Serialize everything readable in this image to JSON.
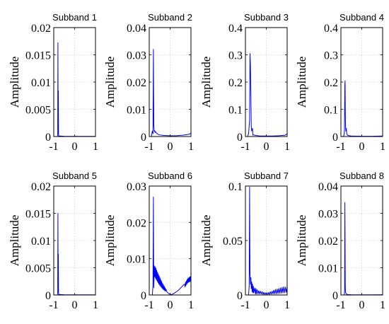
{
  "chart_data": [
    {
      "type": "line",
      "title": "Subband 1",
      "xlabel": "",
      "ylabel": "Amplitude",
      "xlim": [
        -1,
        1
      ],
      "ylim": [
        0,
        0.02
      ],
      "xticks": [
        "-1",
        "0",
        "1"
      ],
      "yticks": [
        "0",
        "0.005",
        "0.01",
        "0.015",
        "0.02"
      ],
      "grid": true,
      "series": [
        {
          "color": "#0000ff",
          "x": [
            -0.82,
            -0.81,
            -0.8,
            -0.79,
            -0.78,
            -0.77,
            -0.76,
            -0.75,
            -0.7,
            -0.5,
            0,
            0.5,
            1
          ],
          "y": [
            0,
            0.0001,
            0.0172,
            0.0005,
            0.0084,
            0.0003,
            0.0001,
            0.0001,
            0.0001,
            5e-05,
            3e-05,
            3e-05,
            4e-05
          ]
        }
      ]
    },
    {
      "type": "line",
      "title": "Subband 2",
      "xlabel": "",
      "ylabel": "Amplitude",
      "xlim": [
        -1,
        1
      ],
      "ylim": [
        0,
        0.04
      ],
      "xticks": [
        "-1",
        "0",
        "1"
      ],
      "yticks": [
        "0",
        "0.01",
        "0.02",
        "0.03",
        "0.04"
      ],
      "grid": true,
      "series": [
        {
          "color": "#0000ff",
          "x": [
            -0.9,
            -0.85,
            -0.82,
            -0.8,
            -0.79,
            -0.78,
            -0.77,
            -0.76,
            -0.74,
            -0.72,
            -0.7,
            -0.65,
            -0.6,
            -0.5,
            -0.3,
            0,
            0.3,
            0.6,
            0.9,
            1
          ],
          "y": [
            0,
            0.002,
            0.001,
            0.032,
            0.017,
            0.004,
            0.003,
            0.002,
            0.0022,
            0.0015,
            0.0018,
            0.0012,
            0.0009,
            0.0006,
            0.0004,
            0.0003,
            0.0003,
            0.0005,
            0.0008,
            0.0012
          ]
        }
      ]
    },
    {
      "type": "line",
      "title": "Subband 3",
      "xlabel": "",
      "ylabel": "Amplitude",
      "xlim": [
        -1,
        1
      ],
      "ylim": [
        0,
        0.4
      ],
      "xticks": [
        "-1",
        "0",
        "1"
      ],
      "yticks": [
        "0",
        "0.1",
        "0.2",
        "0.3",
        "0.4"
      ],
      "grid": true,
      "series": [
        {
          "color": "#0000ff",
          "x": [
            -0.9,
            -0.85,
            -0.8,
            -0.78,
            -0.76,
            -0.74,
            -0.72,
            -0.7,
            -0.66,
            -0.64,
            -0.6,
            -0.5,
            -0.3,
            0,
            0.3,
            0.6,
            0.9,
            1
          ],
          "y": [
            0,
            0.01,
            0.06,
            0.305,
            0.26,
            0.16,
            0.04,
            0.02,
            0.03,
            0.005,
            0.006,
            0.004,
            0.002,
            0.002,
            0.002,
            0.003,
            0.005,
            0.01
          ]
        }
      ]
    },
    {
      "type": "line",
      "title": "Subband 4",
      "xlabel": "",
      "ylabel": "Amplitude",
      "xlim": [
        -1,
        1
      ],
      "ylim": [
        0,
        0.4
      ],
      "xticks": [
        "-1",
        "0",
        "1"
      ],
      "yticks": [
        "0",
        "0.1",
        "0.2",
        "0.3",
        "0.4"
      ],
      "grid": true,
      "series": [
        {
          "color": "#0000ff",
          "x": [
            -0.9,
            -0.85,
            -0.83,
            -0.81,
            -0.8,
            -0.79,
            -0.78,
            -0.76,
            -0.74,
            -0.72,
            -0.68,
            -0.6,
            -0.5,
            0,
            0.5,
            1
          ],
          "y": [
            0,
            0.005,
            0.02,
            0.19,
            0.205,
            0.1,
            0.04,
            0.02,
            0.03,
            0.01,
            0.005,
            0.003,
            0.002,
            0.001,
            0.001,
            0.002
          ]
        }
      ]
    },
    {
      "type": "line",
      "title": "Subband 5",
      "xlabel": "",
      "ylabel": "Amplitude",
      "xlim": [
        -1,
        1
      ],
      "ylim": [
        0,
        0.02
      ],
      "xticks": [
        "-1",
        "0",
        "1"
      ],
      "yticks": [
        "0",
        "0.005",
        "0.01",
        "0.015",
        "0.02"
      ],
      "grid": true,
      "series": [
        {
          "color": "#0000ff",
          "x": [
            -0.82,
            -0.81,
            -0.8,
            -0.79,
            -0.78,
            -0.77,
            -0.76,
            -0.75,
            -0.7,
            -0.5,
            0,
            0.5,
            1
          ],
          "y": [
            0,
            0.0001,
            0.015,
            0.0005,
            0.0075,
            0.0003,
            0.0001,
            0.0001,
            0.0001,
            5e-05,
            3e-05,
            3e-05,
            4e-05
          ]
        }
      ]
    },
    {
      "type": "line",
      "title": "Subband 6",
      "xlabel": "",
      "ylabel": "Amplitude",
      "xlim": [
        -1,
        1
      ],
      "ylim": [
        0,
        0.03
      ],
      "xticks": [
        "-1",
        "0",
        "1"
      ],
      "yticks": [
        "0",
        "0.01",
        "0.02",
        "0.03"
      ],
      "grid": true,
      "series": [
        {
          "color": "#0000ff",
          "x": [
            -0.85,
            -0.82,
            -0.8,
            -0.79,
            -0.78,
            -0.76,
            -0.74,
            -0.72,
            -0.7,
            -0.68,
            -0.66,
            -0.64,
            -0.62,
            -0.6,
            -0.58,
            -0.56,
            -0.54,
            -0.52,
            -0.5,
            -0.48,
            -0.46,
            -0.44,
            -0.42,
            -0.4,
            -0.38,
            -0.36,
            -0.34,
            -0.32,
            -0.3,
            -0.28,
            -0.26,
            -0.24,
            -0.22,
            -0.2,
            -0.15,
            -0.1,
            -0.05,
            0,
            0.05,
            0.1,
            0.15,
            0.2,
            0.25,
            0.3,
            0.35,
            0.4,
            0.45,
            0.5,
            0.55,
            0.6,
            0.65,
            0.7,
            0.72,
            0.74,
            0.76,
            0.78,
            0.8,
            0.82,
            0.84,
            0.86,
            0.88,
            0.9,
            0.92,
            0.94,
            0.96,
            0.98,
            1
          ],
          "y": [
            0,
            0.003,
            0.027,
            0.01,
            0.002,
            0.008,
            0.005,
            0.0078,
            0.0046,
            0.0074,
            0.0042,
            0.0068,
            0.0038,
            0.0062,
            0.0034,
            0.0057,
            0.003,
            0.0052,
            0.0027,
            0.0047,
            0.0024,
            0.0042,
            0.0021,
            0.0037,
            0.0018,
            0.0032,
            0.0016,
            0.0028,
            0.0014,
            0.0024,
            0.0012,
            0.002,
            0.001,
            0.0016,
            0.0008,
            0.0006,
            0.0003,
            0.0002,
            0.0001,
            0.0002,
            0.0003,
            0.0005,
            0.0007,
            0.0009,
            0.0011,
            0.0013,
            0.0016,
            0.0019,
            0.0022,
            0.0025,
            0.0028,
            0.003,
            0.0022,
            0.0035,
            0.0026,
            0.0039,
            0.003,
            0.0043,
            0.0033,
            0.0046,
            0.0035,
            0.0048,
            0.0036,
            0.005,
            0.0037,
            0.0051,
            0.0038
          ]
        }
      ]
    },
    {
      "type": "line",
      "title": "Subband 7",
      "xlabel": "",
      "ylabel": "Amplitude",
      "xlim": [
        -1,
        1
      ],
      "ylim": [
        0,
        0.1
      ],
      "xticks": [
        "-1",
        "0",
        "1"
      ],
      "yticks": [
        "0",
        "0.05",
        "0.1"
      ],
      "grid": true,
      "series": [
        {
          "color": "#0000ff",
          "x": [
            -0.85,
            -0.82,
            -0.8,
            -0.79,
            -0.78,
            -0.76,
            -0.74,
            -0.72,
            -0.7,
            -0.68,
            -0.66,
            -0.64,
            -0.62,
            -0.6,
            -0.56,
            -0.52,
            -0.5,
            -0.48,
            -0.44,
            -0.4,
            -0.36,
            -0.32,
            -0.28,
            -0.24,
            -0.2,
            -0.16,
            -0.12,
            -0.08,
            -0.04,
            0,
            0.04,
            0.08,
            0.12,
            0.16,
            0.2,
            0.24,
            0.28,
            0.32,
            0.36,
            0.4,
            0.44,
            0.48,
            0.52,
            0.56,
            0.6,
            0.64,
            0.68,
            0.72,
            0.76,
            0.8,
            0.84,
            0.88,
            0.92,
            0.96,
            1
          ],
          "y": [
            0,
            0.008,
            0.099,
            0.05,
            0.02,
            0.01,
            0.016,
            0.006,
            0.012,
            0.003,
            0.01,
            0.002,
            0.008,
            0.002,
            0.0065,
            0.001,
            0.006,
            0.001,
            0.005,
            0.001,
            0.004,
            0.001,
            0.0035,
            0.001,
            0.003,
            0.0005,
            0.0025,
            0.0005,
            0.002,
            0.0005,
            0.002,
            0.0005,
            0.0025,
            0.0005,
            0.003,
            0.0008,
            0.0035,
            0.001,
            0.0045,
            0.001,
            0.005,
            0.001,
            0.0055,
            0.0012,
            0.006,
            0.0015,
            0.0065,
            0.0015,
            0.007,
            0.0018,
            0.0075,
            0.002,
            0.0072,
            0.0025,
            0.0075
          ]
        }
      ]
    },
    {
      "type": "line",
      "title": "Subband 8",
      "xlabel": "",
      "ylabel": "Amplitude",
      "xlim": [
        -1,
        1
      ],
      "ylim": [
        0,
        0.04
      ],
      "xticks": [
        "-1",
        "0",
        "1"
      ],
      "yticks": [
        "0",
        "0.01",
        "0.02",
        "0.03",
        "0.04"
      ],
      "grid": true,
      "series": [
        {
          "color": "#0000ff",
          "x": [
            -0.85,
            -0.83,
            -0.82,
            -0.81,
            -0.8,
            -0.79,
            -0.78,
            -0.77,
            -0.75,
            -0.72,
            -0.7,
            -0.5,
            0,
            0.5,
            1
          ],
          "y": [
            0,
            0.0005,
            0.002,
            0.034,
            0.0185,
            0.003,
            0.001,
            0.0008,
            0.0005,
            0.0003,
            0.0002,
            0.0001,
            5e-05,
            5e-05,
            0.0001
          ]
        }
      ]
    }
  ]
}
